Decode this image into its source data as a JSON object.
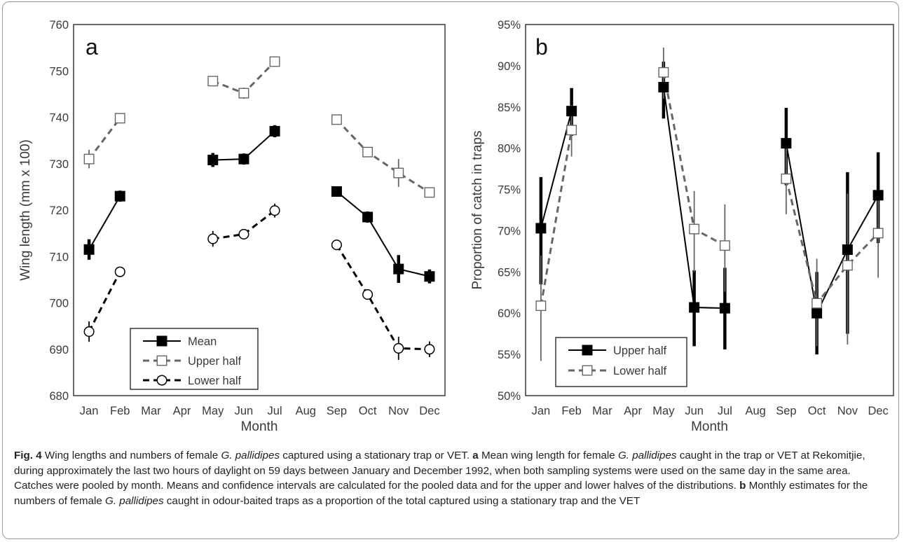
{
  "chart_data": [
    {
      "type": "line",
      "panel_label": "a",
      "xlabel": "Month",
      "ylabel": "Wing length (mm x 100)",
      "ylim": [
        680,
        760
      ],
      "yticks": [
        680,
        690,
        700,
        710,
        720,
        730,
        740,
        750,
        760
      ],
      "categories": [
        "Jan",
        "Feb",
        "Mar",
        "Apr",
        "May",
        "Jun",
        "Jul",
        "Aug",
        "Sep",
        "Oct",
        "Nov",
        "Dec"
      ],
      "legend_position": "bottom-left",
      "series": [
        {
          "name": "Mean",
          "marker": "filled-square",
          "line": "solid",
          "color": "#000000",
          "values": [
            711.5,
            723,
            null,
            null,
            730.8,
            731,
            737,
            null,
            724,
            718.5,
            707.3,
            705.7
          ],
          "err": [
            2.2,
            1.2,
            null,
            null,
            1.5,
            1.2,
            1.3,
            null,
            1.0,
            1.2,
            3.0,
            1.5
          ]
        },
        {
          "name": "Upper half",
          "marker": "open-square",
          "line": "dashed",
          "color": "#666666",
          "values": [
            731,
            739.8,
            null,
            null,
            747.8,
            745.2,
            752,
            null,
            739.5,
            732.5,
            728,
            723.8
          ],
          "err": [
            2.0,
            0,
            null,
            null,
            0,
            1.2,
            0,
            null,
            0,
            1.0,
            3.0,
            1.0
          ]
        },
        {
          "name": "Lower half",
          "marker": "open-circle",
          "line": "dashed",
          "color": "#000000",
          "values": [
            693.8,
            706.7,
            null,
            null,
            713.8,
            714.8,
            719.9,
            null,
            712.5,
            701.8,
            690.2,
            690
          ],
          "err": [
            2.2,
            0,
            null,
            null,
            1.7,
            1.0,
            1.5,
            null,
            0,
            1.0,
            2.5,
            1.7
          ]
        }
      ]
    },
    {
      "type": "line",
      "panel_label": "b",
      "xlabel": "Month",
      "ylabel": "Proportion of catch in traps",
      "ylim": [
        0.5,
        0.95
      ],
      "yticks": [
        "50%",
        "55%",
        "60%",
        "65%",
        "70%",
        "75%",
        "80%",
        "85%",
        "90%",
        "95%"
      ],
      "categories": [
        "Jan",
        "Feb",
        "Mar",
        "Apr",
        "May",
        "Jun",
        "Jul",
        "Aug",
        "Sep",
        "Oct",
        "Nov",
        "Dec"
      ],
      "legend_position": "bottom-left",
      "series": [
        {
          "name": "Upper half",
          "marker": "filled-square",
          "line": "solid",
          "color": "#000000",
          "values": [
            0.703,
            0.845,
            null,
            null,
            0.874,
            0.607,
            0.606,
            null,
            0.806,
            0.6,
            0.677,
            0.743
          ],
          "err_low": [
            0.635,
            0.815,
            null,
            null,
            0.836,
            0.56,
            0.556,
            null,
            0.755,
            0.55,
            0.575,
            0.685
          ],
          "err_high": [
            0.765,
            0.873,
            null,
            null,
            0.905,
            0.652,
            0.655,
            null,
            0.849,
            0.65,
            0.771,
            0.795
          ]
        },
        {
          "name": "Lower half",
          "marker": "open-square",
          "line": "dashed",
          "color": "#666666",
          "values": [
            0.609,
            0.822,
            null,
            null,
            0.892,
            0.702,
            0.682,
            null,
            0.763,
            0.612,
            0.658,
            0.697
          ],
          "err_low": [
            0.542,
            0.79,
            null,
            null,
            0.86,
            0.65,
            0.626,
            null,
            0.72,
            0.56,
            0.562,
            0.643
          ],
          "err_high": [
            0.67,
            0.852,
            null,
            null,
            0.922,
            0.748,
            0.732,
            null,
            0.805,
            0.666,
            0.745,
            0.748
          ]
        }
      ]
    }
  ],
  "caption": {
    "fig_label": "Fig. 4",
    "p1": " Wing lengths and numbers of female ",
    "species1": "G. pallidipes",
    "p2": " captured using a stationary trap or VET. ",
    "label_a": "a",
    "p3": " Mean wing length for female ",
    "species2": "G. pallidipes",
    "p4": " caught in the trap or VET at Rekomitjie, during approximately the last two hours of daylight on 59 days between January and December 1992, when both sampling systems were used on the same day in the same area. Catches were pooled by month. Means and confidence intervals are calculated for the pooled data and for the upper and lower halves of the distributions. ",
    "label_b": "b",
    "p5": " Monthly estimates for the numbers of female ",
    "species3": "G. pallidipes",
    "p6": " caught in odour-baited traps as a proportion of the total captured using a stationary trap and the VET"
  }
}
